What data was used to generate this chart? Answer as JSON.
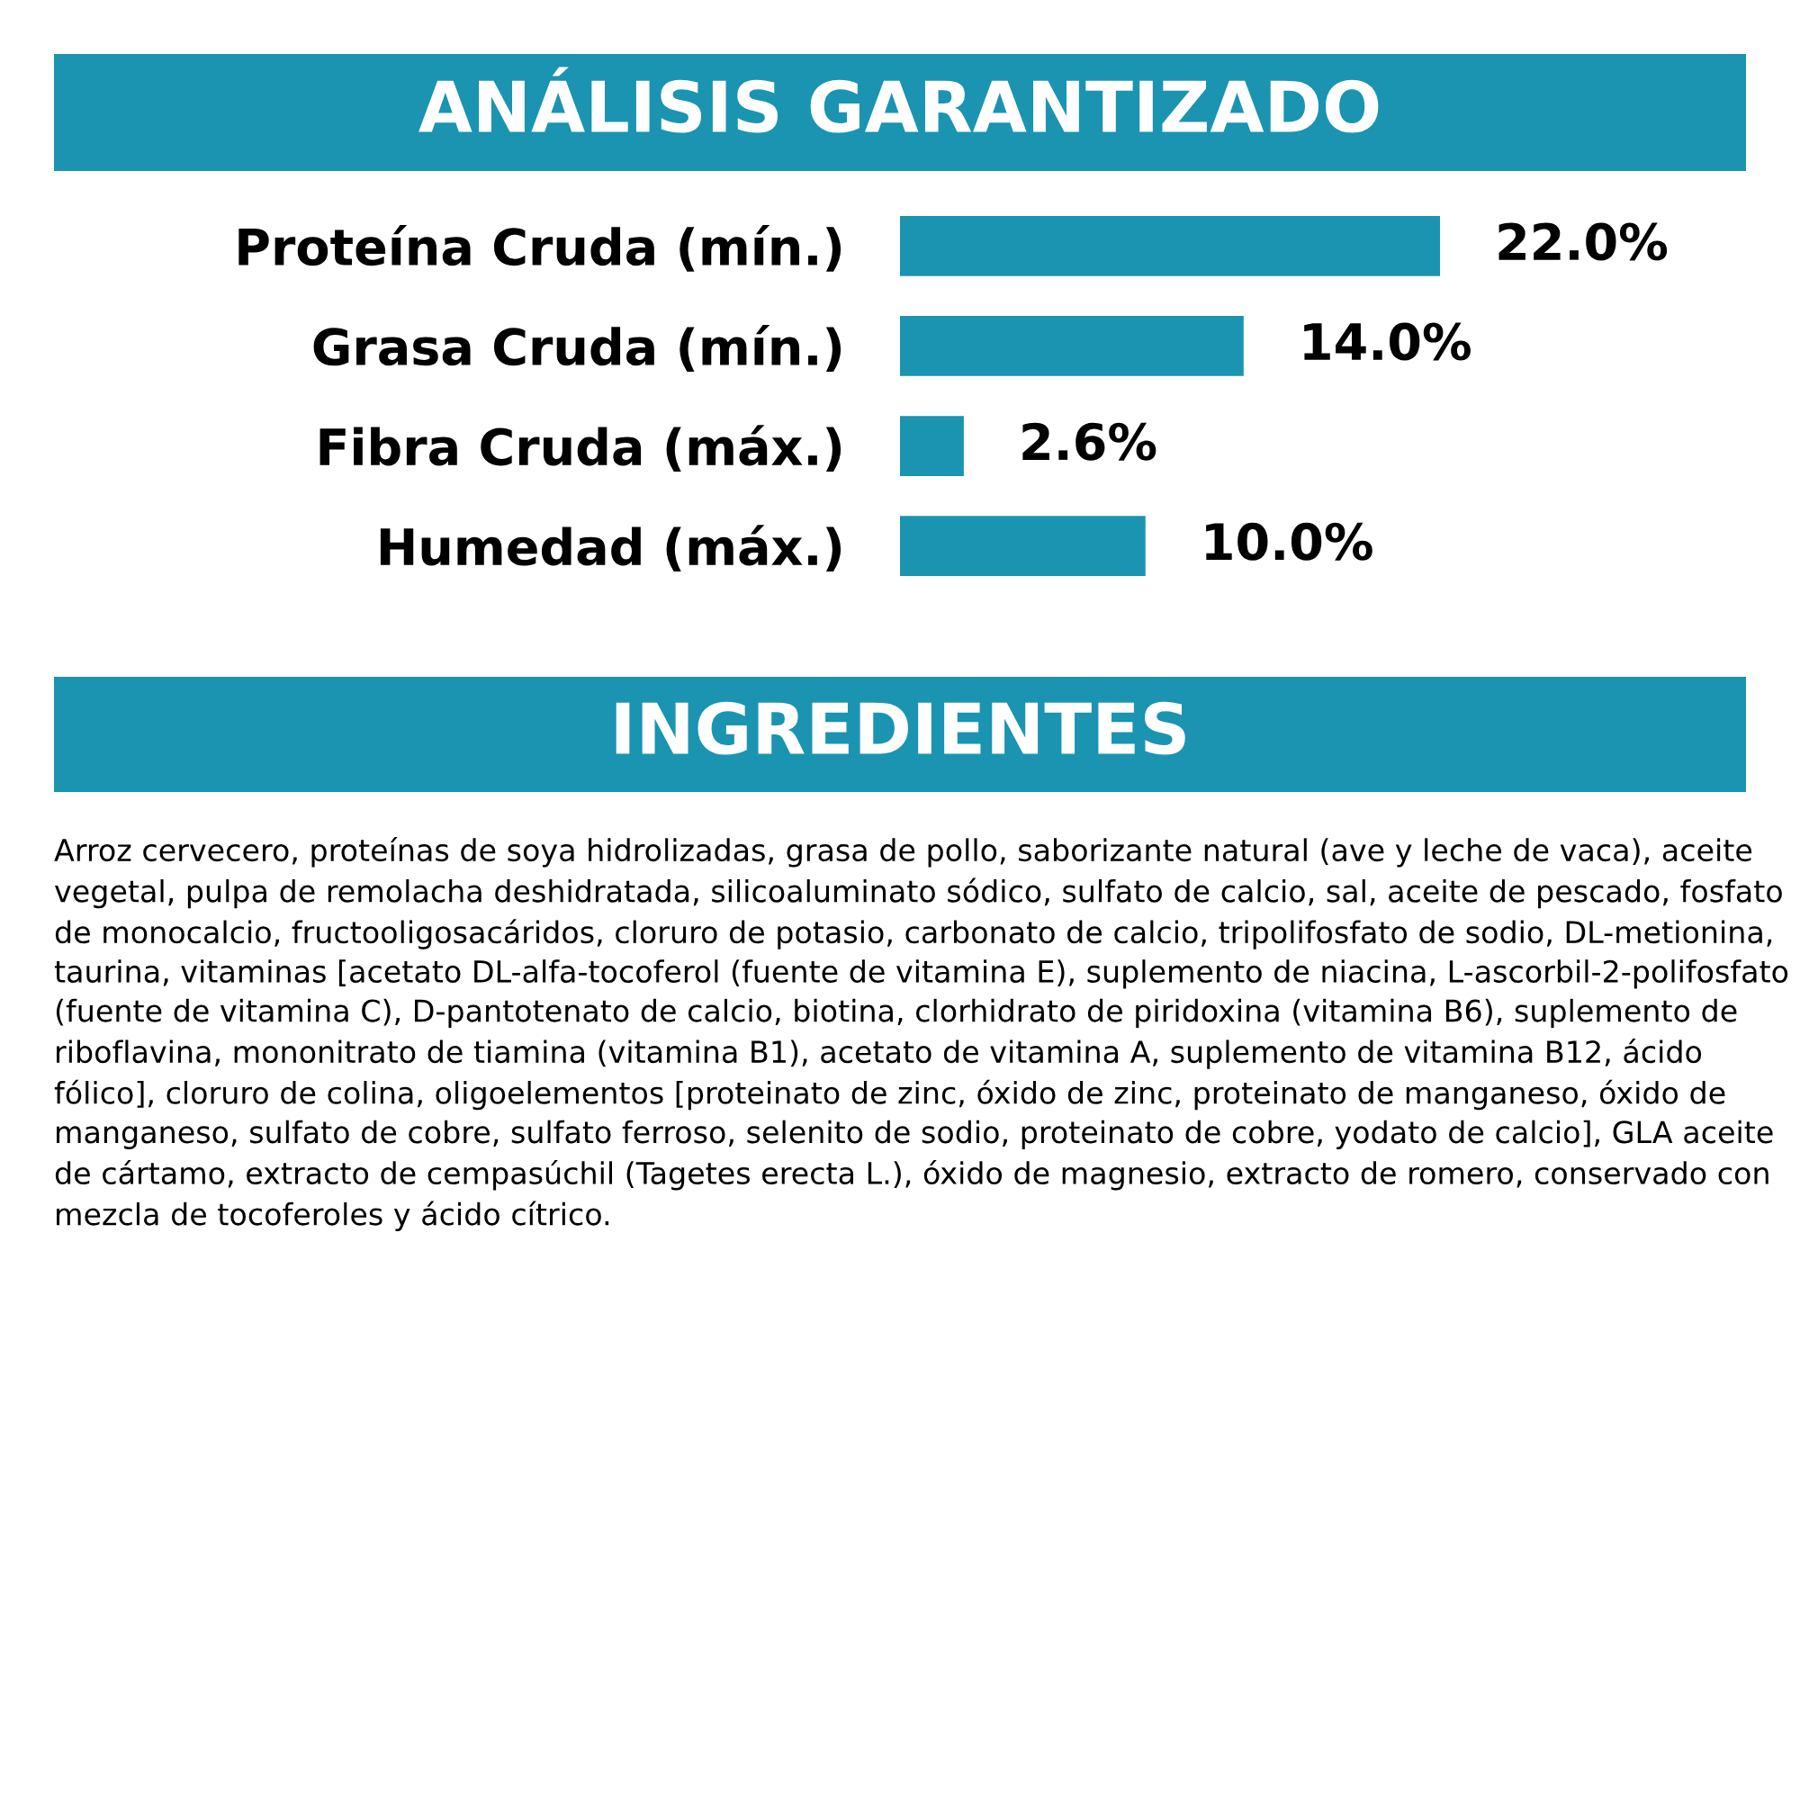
{
  "chart_data": {
    "type": "bar",
    "orientation": "horizontal",
    "title": "ANÁLISIS GARANTIZADO",
    "categories": [
      "Proteína Cruda (mín.)",
      "Grasa Cruda (mín.)",
      "Fibra Cruda (máx.)",
      "Humedad (máx.)"
    ],
    "values": [
      22.0,
      14.0,
      2.6,
      10.0
    ],
    "value_labels": [
      "22.0%",
      "14.0%",
      "2.6%",
      "10.0%"
    ],
    "color": "#1a94b1",
    "grid": false,
    "legend": false,
    "annotations": [
      "INGREDIENTES",
      "Arroz cervecero, proteínas de soya hidrolizadas, grasa de pollo, saborizante natural (ave y leche de vaca), aceite vegetal, pulpa de remolacha deshidratada, silicoaluminato sódico, sulfato de calcio, sal, aceite de pescado, fosfato de monocalcio, fructooligosacáridos, cloruro de potasio, carbonato de calcio, tripolifosfato de sodio, DL-metionina, taurina, vitaminas [acetato DL-alfa-tocoferol (fuente de vitamina E), suplemento de niacina, L-ascorbil-2-polifosfato (fuente de vitamina C), D-pantotenato de calcio, biotina, clorhidrato de piridoxina (vitamina B6), suplemento de riboflavina, mononitrato de tiamina (vitamina B1), acetato de vitamina A, suplemento de vitamina B12, ácido fólico], cloruro de colina, oligoelementos [proteinato de zinc, óxido de zinc, proteinato de manganeso, óxido de manganeso, sulfato de cobre, sulfato ferroso, selenito de sodio, proteinato de cobre, yodato de calcio], GLA aceite de cártamo, extracto de cempasúchil (Tagetes erecta L.), óxido de magnesio, extracto de romero, conservado con mezcla de tocoferoles y ácido cítrico."
    ]
  }
}
